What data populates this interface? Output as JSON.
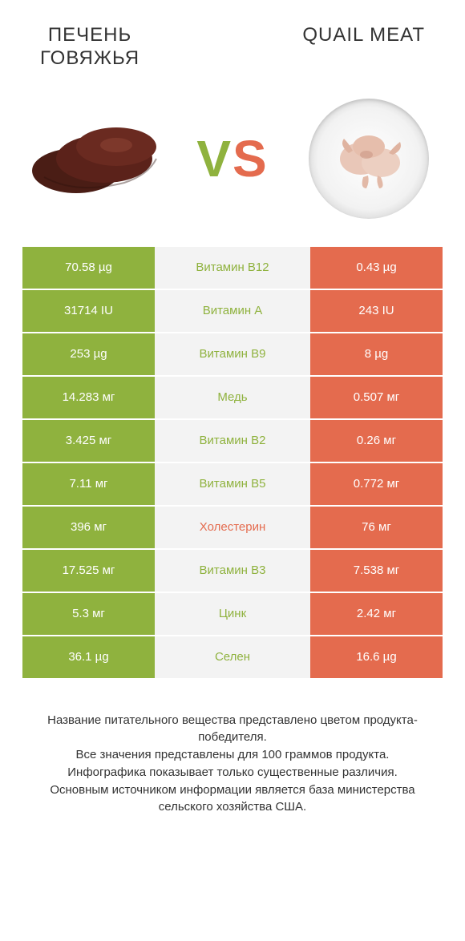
{
  "colors": {
    "green": "#8fb23e",
    "orange": "#e46b4e",
    "mid_bg": "#f3f3f3",
    "bad_label": "#e46b4e"
  },
  "left_title": "ПЕЧЕНЬ\nГОВЯЖЬЯ",
  "right_title": "QUAIL MEAT",
  "vs": {
    "v": "V",
    "s": "S"
  },
  "rows": [
    {
      "left": "70.58 µg",
      "label": "Витамин B12",
      "right": "0.43 µg",
      "label_color": "green"
    },
    {
      "left": "31714 IU",
      "label": "Витамин A",
      "right": "243 IU",
      "label_color": "green"
    },
    {
      "left": "253 µg",
      "label": "Витамин B9",
      "right": "8 µg",
      "label_color": "green"
    },
    {
      "left": "14.283 мг",
      "label": "Медь",
      "right": "0.507 мг",
      "label_color": "green"
    },
    {
      "left": "3.425 мг",
      "label": "Витамин B2",
      "right": "0.26 мг",
      "label_color": "green"
    },
    {
      "left": "7.11 мг",
      "label": "Витамин B5",
      "right": "0.772 мг",
      "label_color": "green"
    },
    {
      "left": "396 мг",
      "label": "Холестерин",
      "right": "76 мг",
      "label_color": "bad"
    },
    {
      "left": "17.525 мг",
      "label": "Витамин B3",
      "right": "7.538 мг",
      "label_color": "green"
    },
    {
      "left": "5.3 мг",
      "label": "Цинк",
      "right": "2.42 мг",
      "label_color": "green"
    },
    {
      "left": "36.1 µg",
      "label": "Селен",
      "right": "16.6 µg",
      "label_color": "green"
    }
  ],
  "footnote": "Название питательного вещества представлено цветом продукта-победителя.\nВсе значения представлены для 100 граммов продукта.\nИнфографика показывает только существенные различия.\nОсновным источником информации является база министерства сельского хозяйства США."
}
